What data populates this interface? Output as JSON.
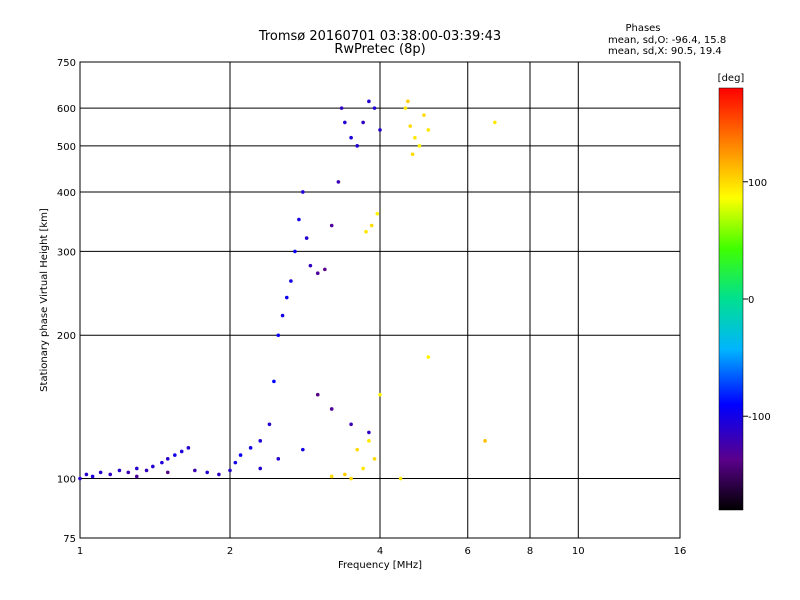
{
  "chart_data": {
    "type": "scatter",
    "title": "Tromsø 20160701 03:38:00-03:39:43",
    "subtitle": "RwPretec (8p)",
    "xlabel": "Frequency [MHz]",
    "ylabel": "Stationary phase Virtual Height [km]",
    "x_scale": "log",
    "y_scale": "log",
    "xlim": [
      1,
      16
    ],
    "ylim": [
      75,
      750
    ],
    "x_ticks": [
      1,
      2,
      4,
      6,
      8,
      10,
      16
    ],
    "x_tick_labels": [
      "1",
      "2",
      "4",
      "6",
      "8",
      "10",
      "16"
    ],
    "y_ticks": [
      75,
      100,
      200,
      300,
      400,
      500,
      600,
      750
    ],
    "y_tick_labels": [
      "75",
      "100",
      "200",
      "300",
      "400",
      "500",
      "600",
      "750"
    ],
    "grid": true,
    "phase_panel": {
      "heading": "Phases",
      "line_o": "mean, sd,O: -96.4, 15.8",
      "line_x": "mean, sd,X:  90.5, 19.4"
    },
    "colorbar": {
      "label": "[deg]",
      "range": [
        -180,
        180
      ],
      "ticks": [
        100,
        0,
        -100
      ],
      "tick_labels": [
        "100",
        "0",
        "-100"
      ]
    },
    "series": [
      {
        "points": [
          [
            1.0,
            100,
            -110
          ],
          [
            1.03,
            102,
            -110
          ],
          [
            1.06,
            101,
            -105
          ],
          [
            1.1,
            103,
            -110
          ],
          [
            1.15,
            102,
            -115
          ],
          [
            1.2,
            104,
            -110
          ],
          [
            1.25,
            103,
            -120
          ],
          [
            1.3,
            105,
            -110
          ],
          [
            1.36,
            104,
            -115
          ],
          [
            1.4,
            106,
            -110
          ],
          [
            1.46,
            108,
            -105
          ],
          [
            1.5,
            110,
            -110
          ],
          [
            1.55,
            112,
            -100
          ],
          [
            1.6,
            114,
            -105
          ],
          [
            1.65,
            116,
            -110
          ],
          [
            1.7,
            104,
            -120
          ],
          [
            1.8,
            103,
            -110
          ],
          [
            1.9,
            102,
            -115
          ],
          [
            2.0,
            104,
            -110
          ],
          [
            2.05,
            108,
            -100
          ],
          [
            2.1,
            112,
            -95
          ],
          [
            2.2,
            116,
            -100
          ],
          [
            2.3,
            120,
            -105
          ],
          [
            2.4,
            130,
            -110
          ],
          [
            2.45,
            160,
            -90
          ],
          [
            2.5,
            200,
            -95
          ],
          [
            2.55,
            220,
            -100
          ],
          [
            2.6,
            240,
            -95
          ],
          [
            2.65,
            260,
            -100
          ],
          [
            2.7,
            300,
            -95
          ],
          [
            2.75,
            350,
            -100
          ],
          [
            2.8,
            400,
            -105
          ],
          [
            2.85,
            320,
            -110
          ],
          [
            2.9,
            280,
            -115
          ],
          [
            3.0,
            270,
            -130
          ],
          [
            3.1,
            275,
            -135
          ],
          [
            3.2,
            340,
            -130
          ],
          [
            3.3,
            420,
            -120
          ],
          [
            3.35,
            600,
            -115
          ],
          [
            3.4,
            560,
            -110
          ],
          [
            3.5,
            520,
            -105
          ],
          [
            3.6,
            500,
            -110
          ],
          [
            3.7,
            560,
            -115
          ],
          [
            3.8,
            620,
            -110
          ],
          [
            3.9,
            600,
            -105
          ],
          [
            4.0,
            540,
            -110
          ],
          [
            3.0,
            150,
            -140
          ],
          [
            3.2,
            140,
            -130
          ],
          [
            3.5,
            130,
            -120
          ],
          [
            3.8,
            125,
            -115
          ],
          [
            2.3,
            105,
            -110
          ],
          [
            2.5,
            110,
            -110
          ],
          [
            2.8,
            115,
            -100
          ],
          [
            1.3,
            101,
            -130
          ],
          [
            1.5,
            103,
            -140
          ]
        ]
      },
      {
        "points": [
          [
            3.5,
            100,
            100
          ],
          [
            3.7,
            105,
            95
          ],
          [
            3.9,
            110,
            100
          ],
          [
            4.0,
            150,
            90
          ],
          [
            3.8,
            120,
            95
          ],
          [
            3.6,
            115,
            100
          ],
          [
            3.4,
            102,
            105
          ],
          [
            3.2,
            101,
            100
          ],
          [
            3.75,
            330,
            95
          ],
          [
            3.85,
            340,
            100
          ],
          [
            3.95,
            360,
            90
          ],
          [
            4.5,
            600,
            95
          ],
          [
            4.6,
            550,
            100
          ],
          [
            4.7,
            520,
            95
          ],
          [
            4.8,
            500,
            90
          ],
          [
            4.9,
            580,
            100
          ],
          [
            5.0,
            540,
            95
          ],
          [
            4.55,
            620,
            105
          ],
          [
            4.65,
            480,
            100
          ],
          [
            6.5,
            120,
            110
          ],
          [
            6.8,
            560,
            95
          ],
          [
            5.0,
            180,
            90
          ],
          [
            4.4,
            100,
            95
          ]
        ]
      }
    ]
  }
}
